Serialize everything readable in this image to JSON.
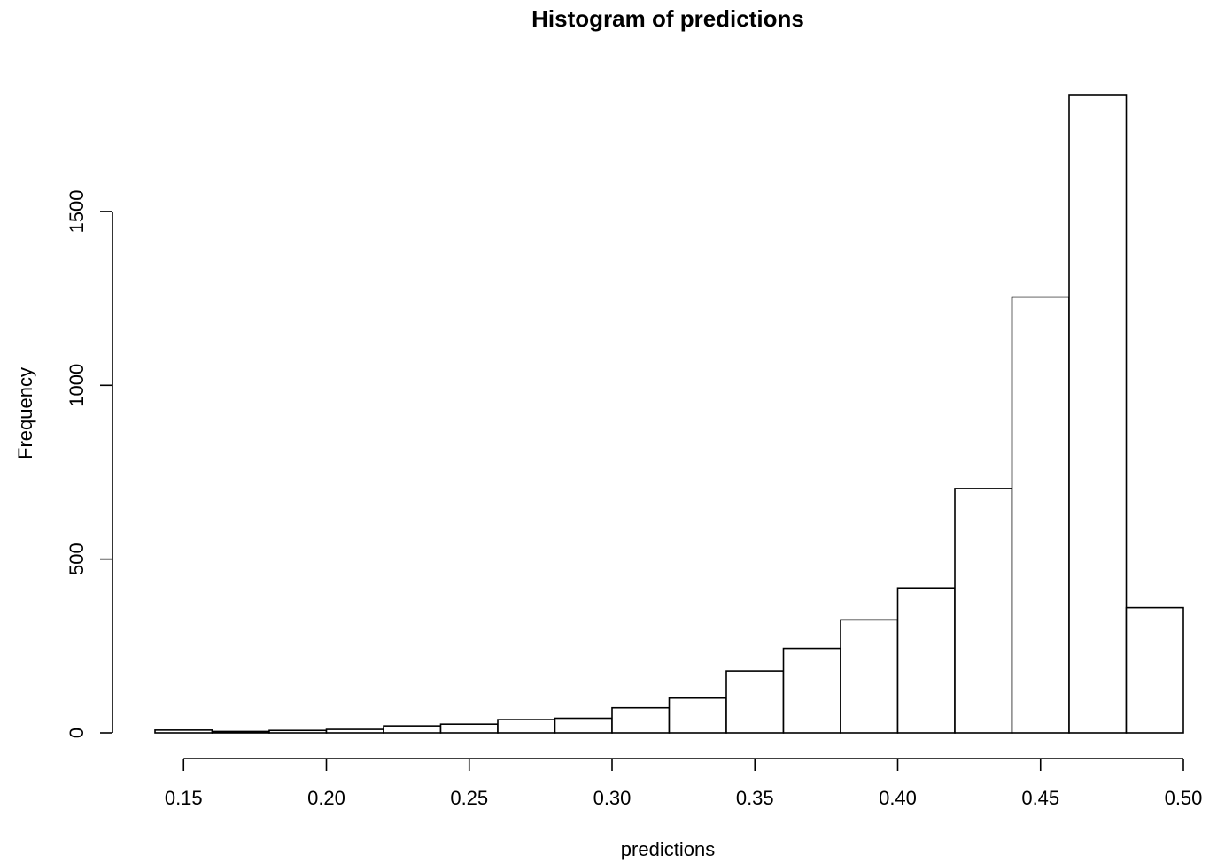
{
  "chart_data": {
    "type": "bar",
    "title": "Histogram of predictions",
    "xlabel": "predictions",
    "ylabel": "Frequency",
    "bin_edges": [
      0.14,
      0.16,
      0.18,
      0.2,
      0.22,
      0.24,
      0.26,
      0.28,
      0.3,
      0.32,
      0.34,
      0.36,
      0.38,
      0.4,
      0.42,
      0.44,
      0.46,
      0.48,
      0.5
    ],
    "values": [
      8,
      4,
      7,
      10,
      20,
      25,
      38,
      42,
      72,
      100,
      178,
      243,
      325,
      417,
      703,
      1254,
      1836,
      360
    ],
    "xticks": [
      0.15,
      0.2,
      0.25,
      0.3,
      0.35,
      0.4,
      0.45,
      0.5
    ],
    "xtick_labels": [
      "0.15",
      "0.20",
      "0.25",
      "0.30",
      "0.35",
      "0.40",
      "0.45",
      "0.50"
    ],
    "yticks": [
      0,
      500,
      1000,
      1500
    ],
    "ytick_labels": [
      "0",
      "500",
      "1000",
      "1500"
    ],
    "xlim": [
      0.14,
      0.5
    ],
    "ylim": [
      0,
      1836
    ],
    "grid": false,
    "legend": "none",
    "colors": {
      "bar_fill": "#ffffff",
      "bar_stroke": "#000000"
    }
  }
}
